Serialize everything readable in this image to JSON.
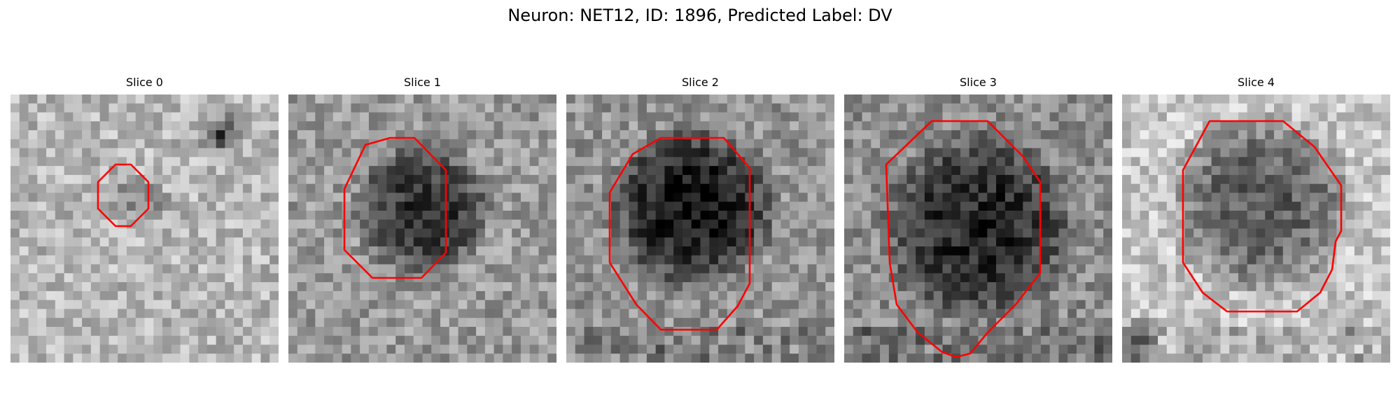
{
  "figure": {
    "title": "Neuron: NET12, ID: 1896, Predicted Label: DV"
  },
  "panels": [
    {
      "title": "Slice 0"
    },
    {
      "title": "Slice 1"
    },
    {
      "title": "Slice 2"
    },
    {
      "title": "Slice 3"
    },
    {
      "title": "Slice 4"
    }
  ],
  "contour_color": "#ff0000",
  "colormap": "gray"
}
